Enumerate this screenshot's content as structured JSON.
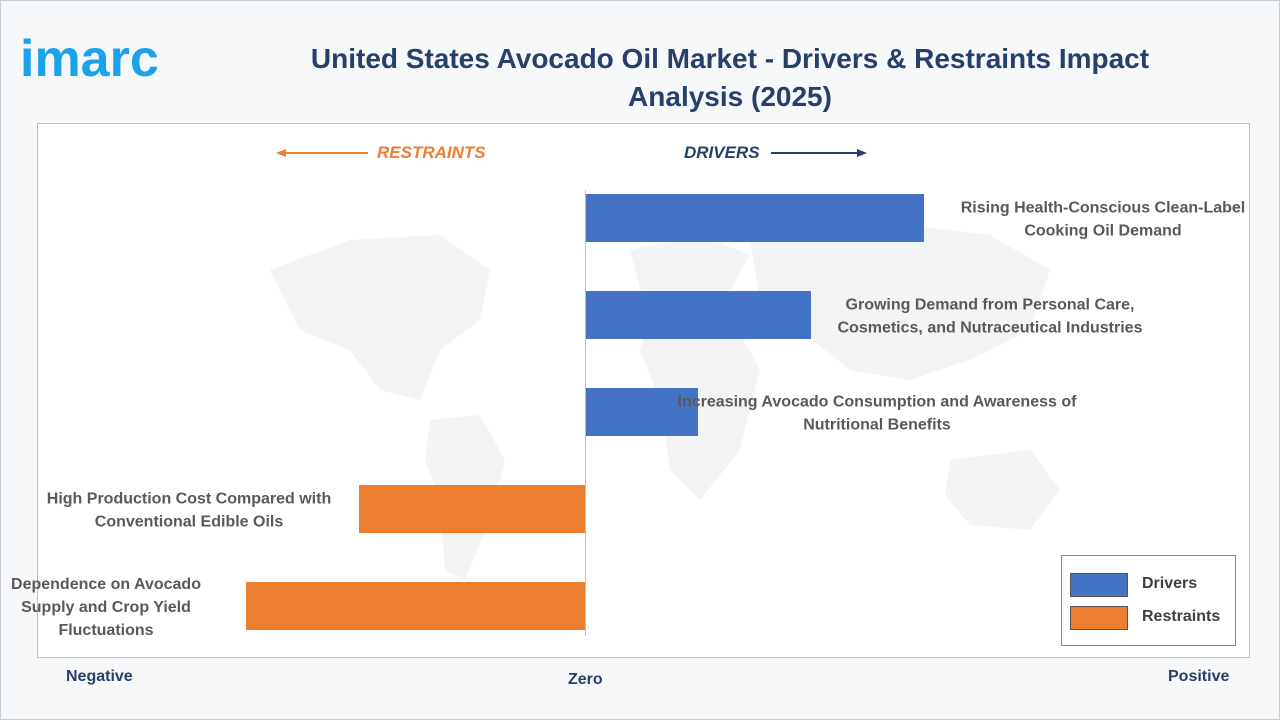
{
  "brand": {
    "logo_text": "imarc"
  },
  "header": {
    "title": "United States Avocado Oil Market - Drivers & Restraints Impact Analysis (2025)"
  },
  "direction": {
    "restraints": "RESTRAINTS",
    "drivers": "DRIVERS"
  },
  "axis": {
    "negative": "Negative",
    "zero": "Zero",
    "positive": "Positive"
  },
  "legend": [
    {
      "label": "Drivers",
      "color": "#4472c4"
    },
    {
      "label": "Restraints",
      "color": "#ed7d31"
    }
  ],
  "colors": {
    "drivers": "#4472c4",
    "restraints": "#ed7d31",
    "title": "#27406a"
  },
  "chart_data": {
    "type": "bar",
    "orientation": "horizontal",
    "title": "United States Avocado Oil Market - Drivers & Restraints Impact Analysis (2025)",
    "xlim": [
      -3,
      5
    ],
    "grid": false,
    "legend_position": "bottom-right",
    "categories": [
      "Rising Health-Conscious Clean-Label Cooking Oil Demand",
      "Growing Demand from Personal Care, Cosmetics, and Nutraceutical Industries",
      "Increasing Avocado Consumption and Awareness of Nutritional Benefits",
      "High Production Cost Compared with Conventional Edible Oils",
      "Dependence on Avocado Supply and Crop Yield Fluctuations"
    ],
    "label_lines": [
      [
        "Rising Health-Conscious Clean-Label",
        "Cooking Oil Demand"
      ],
      [
        "Growing Demand from Personal Care,",
        "Cosmetics, and Nutraceutical Industries"
      ],
      [
        "Increasing Avocado Consumption and Awareness of",
        "Nutritional Benefits"
      ],
      [
        "High Production Cost Compared with",
        "Conventional Edible Oils"
      ],
      [
        "Dependence on Avocado",
        "Supply and Crop Yield",
        "Fluctuations"
      ]
    ],
    "series": [
      {
        "name": "Drivers",
        "values": [
          3,
          2,
          1,
          null,
          null
        ]
      },
      {
        "name": "Restraints",
        "values": [
          null,
          null,
          null,
          -2,
          -3
        ]
      }
    ]
  }
}
